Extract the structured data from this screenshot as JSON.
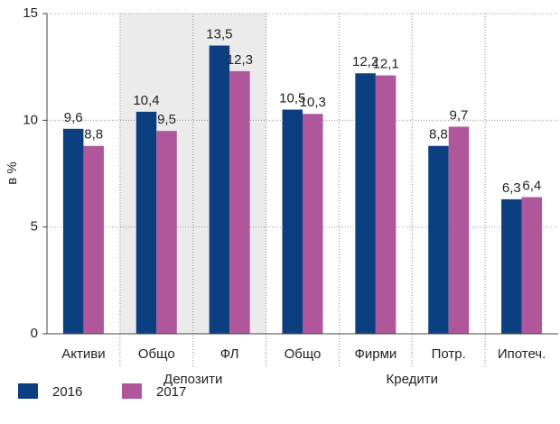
{
  "chart_data": {
    "type": "bar",
    "ylabel": "в %",
    "categories": [
      "Активи",
      "Общо",
      "ФЛ",
      "Общо",
      "Фирми",
      "Потр.",
      "Ипотеч."
    ],
    "groups": [
      {
        "label": "Депозити",
        "span": [
          1,
          2
        ],
        "shaded": true
      },
      {
        "label": "Кредити",
        "span": [
          3,
          6
        ],
        "shaded": false
      }
    ],
    "series": [
      {
        "name": "2016",
        "color": "#0c3f80",
        "values": [
          9.6,
          10.4,
          13.5,
          10.5,
          12.2,
          8.8,
          6.3
        ],
        "value_labels": [
          "9,6",
          "10,4",
          "13,5",
          "10,5",
          "12,2",
          "8,8",
          "6,3"
        ]
      },
      {
        "name": "2017",
        "color": "#b0579c",
        "values": [
          8.8,
          9.5,
          12.3,
          10.3,
          12.1,
          9.7,
          6.4
        ],
        "value_labels": [
          "8,8",
          "9,5",
          "12,3",
          "10,3",
          "12,1",
          "9,7",
          "6,4"
        ]
      }
    ],
    "ylim": [
      0,
      15
    ],
    "yticks": [
      0,
      5,
      10,
      15
    ],
    "grid": true,
    "legend": "bottom-left"
  }
}
